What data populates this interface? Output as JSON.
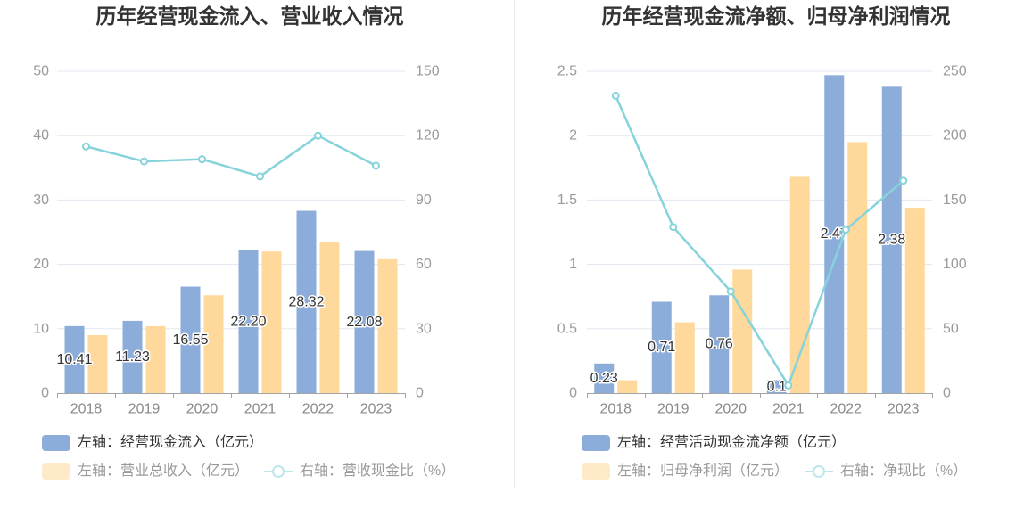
{
  "chart_data": [
    {
      "type": "bar",
      "title": "历年经营现金流入、营业收入情况",
      "categories": [
        "2018",
        "2019",
        "2020",
        "2021",
        "2022",
        "2023"
      ],
      "y_left": {
        "range": [
          0,
          50
        ],
        "ticks": [
          "0",
          "10",
          "20",
          "30",
          "40",
          "50"
        ]
      },
      "y_right": {
        "range": [
          0,
          150
        ],
        "ticks": [
          "0",
          "30",
          "60",
          "90",
          "120",
          "150"
        ]
      },
      "grid": true,
      "legend_position": "bottom-left",
      "series": [
        {
          "name": "左轴：经营现金流入（亿元）",
          "type": "bar",
          "y_axis": "left",
          "color": "#8cadda",
          "values": [
            10.41,
            11.23,
            16.55,
            22.2,
            28.32,
            22.08
          ],
          "labels": [
            "10.41",
            "11.23",
            "16.55",
            "22.20",
            "28.32",
            "22.08"
          ]
        },
        {
          "name": "左轴：营业总收入（亿元）",
          "type": "bar",
          "y_axis": "left",
          "color": "#fed99b",
          "values": [
            9.0,
            10.4,
            15.2,
            22.0,
            23.5,
            20.8
          ]
        },
        {
          "name": "右轴：营收现金比（%）",
          "type": "line",
          "y_axis": "right",
          "color": "#86d3db",
          "values": [
            115,
            108,
            109,
            101,
            120,
            106
          ]
        }
      ]
    },
    {
      "type": "bar",
      "title": "历年经营现金流净额、归母净利润情况",
      "categories": [
        "2018",
        "2019",
        "2020",
        "2021",
        "2022",
        "2023"
      ],
      "y_left": {
        "range": [
          0,
          2.5
        ],
        "ticks": [
          "0",
          "0.5",
          "1",
          "1.5",
          "2",
          "2.5"
        ]
      },
      "y_right": {
        "range": [
          0,
          250
        ],
        "ticks": [
          "0",
          "50",
          "100",
          "150",
          "200",
          "250"
        ]
      },
      "grid": true,
      "legend_position": "bottom-left",
      "series": [
        {
          "name": "左轴：经营活动现金流净额（亿元）",
          "type": "bar",
          "y_axis": "left",
          "color": "#8cadda",
          "values": [
            0.23,
            0.71,
            0.76,
            0.1,
            2.47,
            2.38
          ],
          "labels": [
            "0.23",
            "0.71",
            "0.76",
            "0.1",
            "2.47",
            "2.38"
          ]
        },
        {
          "name": "左轴：归母净利润（亿元）",
          "type": "bar",
          "y_axis": "left",
          "color": "#fed99b",
          "values": [
            0.1,
            0.55,
            0.96,
            1.68,
            1.95,
            1.44
          ]
        },
        {
          "name": "右轴：净现比（%）",
          "type": "line",
          "y_axis": "right",
          "color": "#86d3db",
          "values": [
            231,
            129,
            79,
            6,
            127,
            165
          ]
        }
      ]
    }
  ]
}
